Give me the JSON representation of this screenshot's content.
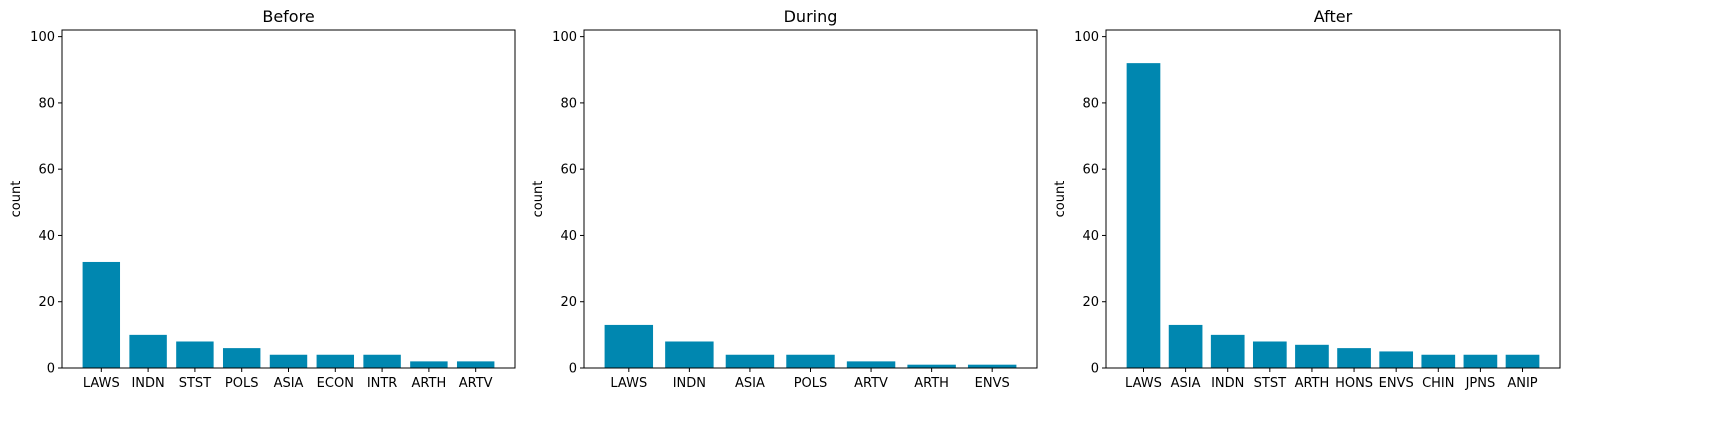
{
  "figure": {
    "bar_color": "#0087b0"
  },
  "chart_data": [
    {
      "type": "bar",
      "title": "Before",
      "xlabel": "",
      "ylabel": "count",
      "ylim": [
        0,
        102
      ],
      "yticks": [
        0,
        20,
        40,
        60,
        80,
        100
      ],
      "categories": [
        "LAWS",
        "INDN",
        "STST",
        "POLS",
        "ASIA",
        "ECON",
        "INTR",
        "ARTH",
        "ARTV"
      ],
      "values": [
        32,
        10,
        8,
        6,
        4,
        4,
        4,
        2,
        2
      ],
      "grid": false,
      "legend": "none"
    },
    {
      "type": "bar",
      "title": "During",
      "xlabel": "",
      "ylabel": "count",
      "ylim": [
        0,
        102
      ],
      "yticks": [
        0,
        20,
        40,
        60,
        80,
        100
      ],
      "categories": [
        "LAWS",
        "INDN",
        "ASIA",
        "POLS",
        "ARTV",
        "ARTH",
        "ENVS"
      ],
      "values": [
        13,
        8,
        4,
        4,
        2,
        1,
        1
      ],
      "grid": false,
      "legend": "none"
    },
    {
      "type": "bar",
      "title": "After",
      "xlabel": "",
      "ylabel": "count",
      "ylim": [
        0,
        102
      ],
      "yticks": [
        0,
        20,
        40,
        60,
        80,
        100
      ],
      "categories": [
        "LAWS",
        "ASIA",
        "INDN",
        "STST",
        "ARTH",
        "HONS",
        "ENVS",
        "CHIN",
        "JPNS",
        "ANIP"
      ],
      "values": [
        92,
        13,
        10,
        8,
        7,
        6,
        5,
        4,
        4,
        4
      ],
      "grid": false,
      "legend": "none"
    }
  ]
}
